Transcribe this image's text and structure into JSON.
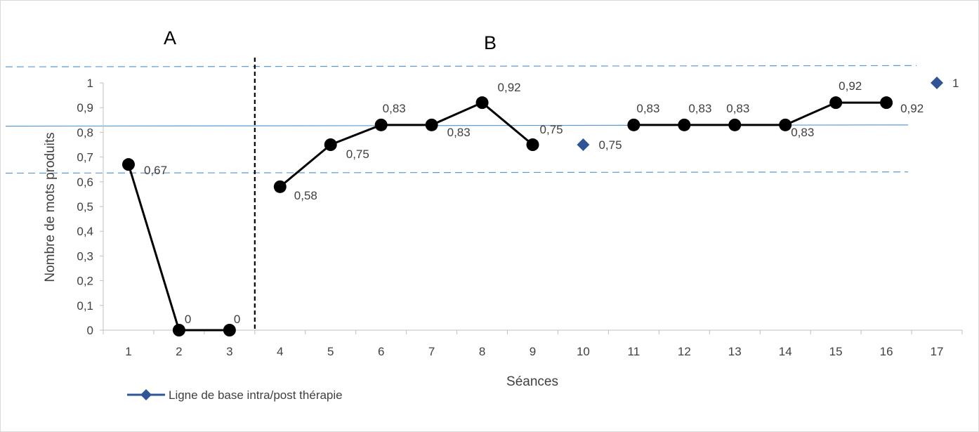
{
  "chart_data": {
    "type": "line",
    "xlabel": "Séances",
    "ylabel": "Nombre de mots produits",
    "ylim": [
      0,
      1
    ],
    "y_ticks": [
      "0",
      "0,1",
      "0,2",
      "0,3",
      "0,4",
      "0,5",
      "0,6",
      "0,7",
      "0,8",
      "0,9",
      "1"
    ],
    "categories": [
      "1",
      "2",
      "3",
      "4",
      "5",
      "6",
      "7",
      "8",
      "9",
      "10",
      "11",
      "12",
      "13",
      "14",
      "15",
      "16",
      "17"
    ],
    "phases": [
      "A",
      "B"
    ],
    "phase_boundary_after_session": 3,
    "series": [
      {
        "name": "",
        "marker": "circle",
        "color": "#000000",
        "points": [
          {
            "x": 1,
            "y": 0.67,
            "label": "0,67"
          },
          {
            "x": 2,
            "y": 0,
            "label": "0"
          },
          {
            "x": 3,
            "y": 0,
            "label": "0"
          },
          {
            "x": 4,
            "y": 0.58,
            "label": "0,58"
          },
          {
            "x": 5,
            "y": 0.75,
            "label": "0,75"
          },
          {
            "x": 6,
            "y": 0.83,
            "label": "0,83"
          },
          {
            "x": 7,
            "y": 0.83,
            "label": "0,83"
          },
          {
            "x": 8,
            "y": 0.92,
            "label": "0,92"
          },
          {
            "x": 9,
            "y": 0.75,
            "label": "0,75"
          },
          {
            "x": 11,
            "y": 0.83,
            "label": "0,83"
          },
          {
            "x": 12,
            "y": 0.83,
            "label": "0,83"
          },
          {
            "x": 13,
            "y": 0.83,
            "label": "0,83"
          },
          {
            "x": 14,
            "y": 0.83,
            "label": "0,83"
          },
          {
            "x": 15,
            "y": 0.92,
            "label": "0,92"
          },
          {
            "x": 16,
            "y": 0.92,
            "label": "0,92"
          }
        ]
      },
      {
        "name": "Ligne de base intra/post thérapie",
        "marker": "diamond",
        "color": "#2f5597",
        "points": [
          {
            "x": 10,
            "y": 0.75,
            "label": "0,75"
          },
          {
            "x": 17,
            "y": 1,
            "label": "1"
          }
        ]
      }
    ],
    "reference_lines": [
      {
        "style": "solid",
        "color": "#5b9bd5",
        "y_start": 0.825,
        "y_end": 0.83
      },
      {
        "style": "dashed",
        "color": "#5b9bd5",
        "y_start": 1.065,
        "y_end": 1.07
      },
      {
        "style": "dashed",
        "color": "#5b9bd5",
        "y_start": 0.635,
        "y_end": 0.64
      }
    ],
    "legend_position": "bottom-left"
  }
}
